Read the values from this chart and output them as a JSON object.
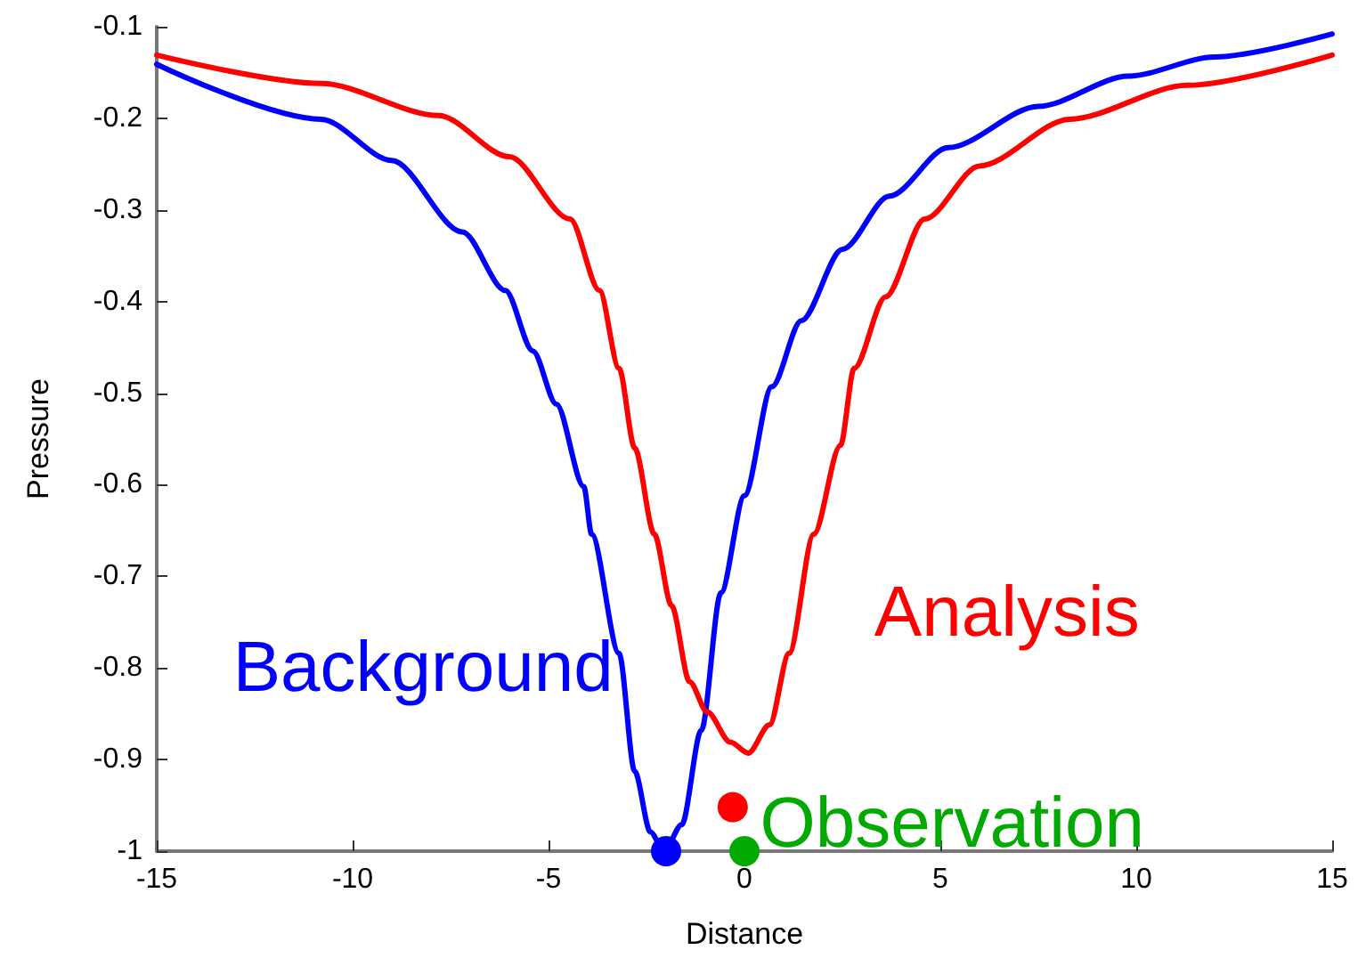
{
  "chart_data": {
    "type": "line",
    "xlabel": "Distance",
    "ylabel": "Pressure",
    "x": [
      -15,
      -10.8,
      -9,
      -7.2,
      -6.1,
      -5.4,
      -4.8,
      -4.1,
      -3.9,
      -3.2,
      -2.8,
      -2.4,
      -2.05,
      -1.6,
      -1.1,
      -0.6,
      0,
      0.7,
      1.45,
      2.5,
      3.7,
      5.2,
      7.5,
      9.8,
      12,
      15
    ],
    "series": [
      {
        "name": "Background",
        "color": "#0000ff",
        "values": [
          -0.141,
          -0.201,
          -0.246,
          -0.324,
          -0.388,
          -0.454,
          -0.512,
          -0.602,
          -0.654,
          -0.784,
          -0.913,
          -0.979,
          -1,
          -0.971,
          -0.868,
          -0.718,
          -0.612,
          -0.493,
          -0.421,
          -0.343,
          -0.285,
          -0.232,
          -0.187,
          -0.154,
          -0.133,
          -0.108
        ]
      },
      {
        "name": "Analysis",
        "color": "#ff0000",
        "x": [
          -15,
          -10.8,
          -7.8,
          -6,
          -4.45,
          -3.7,
          -3.2,
          -2.8,
          -2.3,
          -1.86,
          -1.4,
          -0.95,
          -0.36,
          0.1,
          0.64,
          1.14,
          1.77,
          2.45,
          2.8,
          3.6,
          4.6,
          6,
          8.3,
          11.3,
          15
        ],
        "values": [
          -0.131,
          -0.162,
          -0.197,
          -0.242,
          -0.31,
          -0.388,
          -0.473,
          -0.56,
          -0.654,
          -0.732,
          -0.815,
          -0.848,
          -0.881,
          -0.893,
          -0.862,
          -0.784,
          -0.654,
          -0.557,
          -0.473,
          -0.395,
          -0.31,
          -0.252,
          -0.201,
          -0.164,
          -0.131
        ]
      },
      {
        "type": "scatter",
        "marker": "circle",
        "color": "#0000ff",
        "x": [
          -2
        ],
        "values": [
          -1
        ]
      },
      {
        "type": "scatter",
        "marker": "circle",
        "color": "#ff0000",
        "x": [
          -0.3
        ],
        "values": [
          -0.952
        ]
      },
      {
        "type": "scatter",
        "marker": "circle",
        "name": "Observation",
        "color": "#00aa00",
        "x": [
          0
        ],
        "values": [
          -1
        ]
      }
    ],
    "xlim": [
      -15,
      15
    ],
    "ylim": [
      -1,
      -0.1
    ],
    "xticks": [
      -15,
      -10,
      -5,
      0,
      5,
      10,
      15
    ],
    "yticks": [
      -1,
      -0.9,
      -0.8,
      -0.7,
      -0.6,
      -0.5,
      -0.4,
      -0.3,
      -0.2,
      -0.1
    ],
    "grid": false,
    "legend": false,
    "marker": "none",
    "line_style": "solid"
  }
}
